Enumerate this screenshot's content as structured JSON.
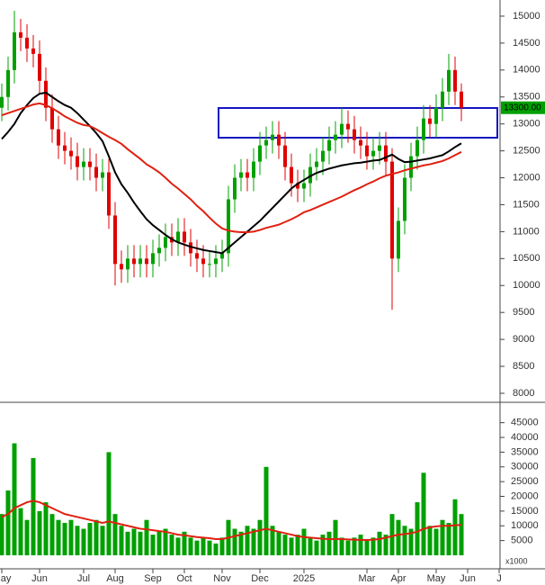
{
  "chart_data": {
    "type": "candlestick",
    "categories": [
      "May",
      null,
      null,
      null,
      null,
      null,
      "Jun",
      null,
      null,
      null,
      null,
      null,
      null,
      "Jul",
      null,
      null,
      null,
      null,
      "Aug",
      null,
      null,
      null,
      null,
      null,
      "Sep",
      null,
      null,
      null,
      null,
      "Oct",
      null,
      null,
      null,
      null,
      null,
      "Nov",
      null,
      null,
      null,
      null,
      null,
      "Dec",
      null,
      null,
      null,
      null,
      null,
      null,
      "2025",
      null,
      null,
      null,
      null,
      null,
      null,
      null,
      null,
      null,
      "Mar",
      null,
      null,
      null,
      null,
      "Apr",
      null,
      null,
      null,
      null,
      null,
      "May",
      null,
      null,
      null,
      null,
      "Jun",
      null,
      null,
      null,
      null,
      "J"
    ],
    "open": [
      13300,
      13500,
      14000,
      14700,
      14600,
      14400,
      14300,
      13800,
      13300,
      12900,
      12600,
      12500,
      12400,
      12200,
      12300,
      12200,
      12000,
      12100,
      11300,
      10400,
      10300,
      10500,
      10400,
      10500,
      10400,
      10600,
      10700,
      10900,
      10800,
      11000,
      10800,
      10600,
      10500,
      10400,
      10400,
      10500,
      10600,
      11600,
      12000,
      12100,
      12000,
      12300,
      12600,
      12700,
      12800,
      12600,
      12200,
      11900,
      11800,
      11900,
      12200,
      12300,
      12500,
      12700,
      12800,
      13000,
      12900,
      12700,
      12600,
      12400,
      12500,
      12600,
      12300,
      10500,
      11200,
      12000,
      12400,
      12700,
      13100,
      13000,
      13300,
      13600,
      14000,
      13600,
      null,
      null,
      null,
      null,
      null,
      null
    ],
    "high": [
      13750,
      14250,
      15100,
      14950,
      14850,
      14650,
      14550,
      14050,
      13550,
      13150,
      12850,
      12750,
      12650,
      12550,
      12550,
      12450,
      12350,
      12350,
      11550,
      10650,
      10750,
      10750,
      10750,
      10750,
      10850,
      10950,
      11150,
      11150,
      11250,
      11250,
      11050,
      10850,
      10750,
      10650,
      10750,
      10850,
      11850,
      12250,
      12350,
      12350,
      12550,
      12850,
      12950,
      13050,
      13050,
      12850,
      12450,
      12150,
      12150,
      12450,
      12550,
      12750,
      12950,
      13050,
      13300,
      13250,
      13150,
      12950,
      12850,
      12750,
      12850,
      12850,
      12550,
      11450,
      12250,
      12650,
      12950,
      13350,
      13350,
      13550,
      13850,
      14300,
      14250,
      13750,
      null,
      null,
      null,
      null,
      null,
      null
    ],
    "low": [
      13050,
      13250,
      13750,
      14350,
      14150,
      14050,
      13550,
      13050,
      12650,
      12350,
      12250,
      12150,
      11950,
      11950,
      11950,
      11750,
      11750,
      11050,
      10000,
      10050,
      10050,
      10150,
      10150,
      10150,
      10150,
      10350,
      10450,
      10550,
      10550,
      10550,
      10350,
      10250,
      10150,
      10150,
      10150,
      10250,
      10350,
      11350,
      11750,
      11750,
      11750,
      12050,
      12350,
      12450,
      12350,
      11950,
      11650,
      11550,
      11550,
      11650,
      11950,
      12050,
      12250,
      12450,
      12550,
      12650,
      12450,
      12350,
      12150,
      12150,
      12250,
      12050,
      9550,
      10250,
      10950,
      11750,
      12150,
      12450,
      12750,
      12750,
      13050,
      13350,
      13350,
      13050,
      null,
      null,
      null,
      null,
      null,
      null
    ],
    "close": [
      13500,
      14000,
      14700,
      14600,
      14400,
      14300,
      13800,
      13300,
      12900,
      12600,
      12500,
      12400,
      12200,
      12300,
      12200,
      12000,
      12100,
      11300,
      10400,
      10300,
      10500,
      10400,
      10500,
      10400,
      10600,
      10700,
      10900,
      10800,
      11000,
      10800,
      10600,
      10500,
      10400,
      10400,
      10500,
      10600,
      11600,
      12000,
      12100,
      12000,
      12300,
      12600,
      12700,
      12800,
      12600,
      12200,
      11900,
      11800,
      11900,
      12200,
      12300,
      12500,
      12700,
      12800,
      13000,
      12900,
      12700,
      12600,
      12400,
      12500,
      12600,
      12300,
      10500,
      11200,
      12000,
      12400,
      12700,
      13100,
      13000,
      13300,
      13600,
      14000,
      13600,
      13300,
      null,
      null,
      null,
      null,
      null,
      null
    ],
    "up_color": "#00a000",
    "down_color": "#e00000",
    "ylim": [
      7866,
      15300
    ],
    "yticks": [
      8000,
      8500,
      9000,
      9500,
      10000,
      10500,
      11000,
      11500,
      12000,
      12500,
      13000,
      13500,
      14000,
      14500,
      15000
    ],
    "last_price": {
      "value": 13300,
      "label": "13300.00"
    },
    "ma_lines": [
      {
        "color": "#000000",
        "values": [
          12720,
          12850,
          13000,
          13200,
          13350,
          13480,
          13560,
          13580,
          13500,
          13420,
          13350,
          13300,
          13200,
          13080,
          12960,
          12830,
          12680,
          12400,
          12100,
          11880,
          11720,
          11540,
          11380,
          11230,
          11120,
          11030,
          10940,
          10860,
          10800,
          10760,
          10720,
          10690,
          10660,
          10640,
          10620,
          10600,
          10700,
          10800,
          10900,
          11000,
          11100,
          11200,
          11320,
          11440,
          11560,
          11680,
          11800,
          11890,
          11960,
          12030,
          12090,
          12130,
          12170,
          12200,
          12230,
          12250,
          12270,
          12280,
          12300,
          12320,
          12330,
          12380,
          12430,
          12350,
          12290,
          12300,
          12320,
          12340,
          12360,
          12390,
          12420,
          12490,
          12570,
          12640,
          null,
          null,
          null,
          null,
          null,
          null
        ]
      },
      {
        "color": "#e02010",
        "values": [
          13160,
          13200,
          13240,
          13280,
          13320,
          13360,
          13380,
          13350,
          13290,
          13220,
          13140,
          13080,
          13020,
          12980,
          12960,
          12900,
          12830,
          12760,
          12700,
          12630,
          12530,
          12440,
          12350,
          12250,
          12180,
          12100,
          12000,
          11890,
          11800,
          11700,
          11600,
          11480,
          11380,
          11260,
          11150,
          11060,
          11020,
          11000,
          10990,
          10990,
          11000,
          11030,
          11070,
          11100,
          11130,
          11180,
          11230,
          11290,
          11360,
          11400,
          11450,
          11500,
          11550,
          11600,
          11650,
          11710,
          11770,
          11820,
          11880,
          11930,
          11990,
          12040,
          12070,
          12100,
          12140,
          12170,
          12200,
          12230,
          12250,
          12280,
          12310,
          12360,
          12420,
          12480,
          null,
          null,
          null,
          null,
          null,
          null
        ]
      }
    ],
    "volume": {
      "color": "#00a000",
      "values": [
        14000,
        22000,
        38000,
        16000,
        12000,
        33000,
        15000,
        18000,
        14000,
        12000,
        11000,
        12000,
        10000,
        9000,
        11000,
        12000,
        10000,
        35000,
        14000,
        10000,
        8000,
        9000,
        8000,
        12000,
        7000,
        8000,
        9000,
        7000,
        6000,
        8000,
        6000,
        5000,
        6000,
        5000,
        4000,
        6000,
        12000,
        9000,
        8000,
        10000,
        9000,
        12000,
        30000,
        10000,
        8000,
        7000,
        6000,
        7000,
        9000,
        6000,
        5000,
        7000,
        8000,
        12000,
        6000,
        5000,
        6000,
        7000,
        5000,
        6000,
        8000,
        7000,
        14000,
        12000,
        10000,
        9000,
        18000,
        28000,
        10000,
        9000,
        12000,
        11000,
        19000,
        14000,
        null,
        null,
        null,
        null,
        null,
        null
      ],
      "ma": {
        "color": "#e02010",
        "values": [
          13000,
          14000,
          16000,
          17000,
          18000,
          18500,
          18000,
          17000,
          16000,
          15000,
          14000,
          13500,
          13000,
          12500,
          12000,
          11500,
          11000,
          11500,
          11000,
          10500,
          10000,
          9500,
          9000,
          8800,
          8500,
          8200,
          8000,
          7500,
          7000,
          6800,
          6500,
          6200,
          6000,
          5800,
          5500,
          5500,
          6000,
          6500,
          7000,
          7500,
          8000,
          8500,
          9000,
          8500,
          8000,
          7500,
          7000,
          6500,
          6200,
          6000,
          5800,
          5600,
          5500,
          5500,
          5500,
          5400,
          5300,
          5200,
          5200,
          5300,
          5500,
          6000,
          6500,
          7000,
          7200,
          7500,
          8000,
          9000,
          9500,
          9800,
          10000,
          10000,
          10200,
          10300,
          null,
          null,
          null,
          null,
          null,
          null
        ]
      },
      "ylim": [
        0,
        51000
      ],
      "yticks": [
        5000,
        10000,
        15000,
        20000,
        25000,
        30000,
        35000,
        40000,
        45000
      ],
      "unit_label": "x1000"
    }
  }
}
